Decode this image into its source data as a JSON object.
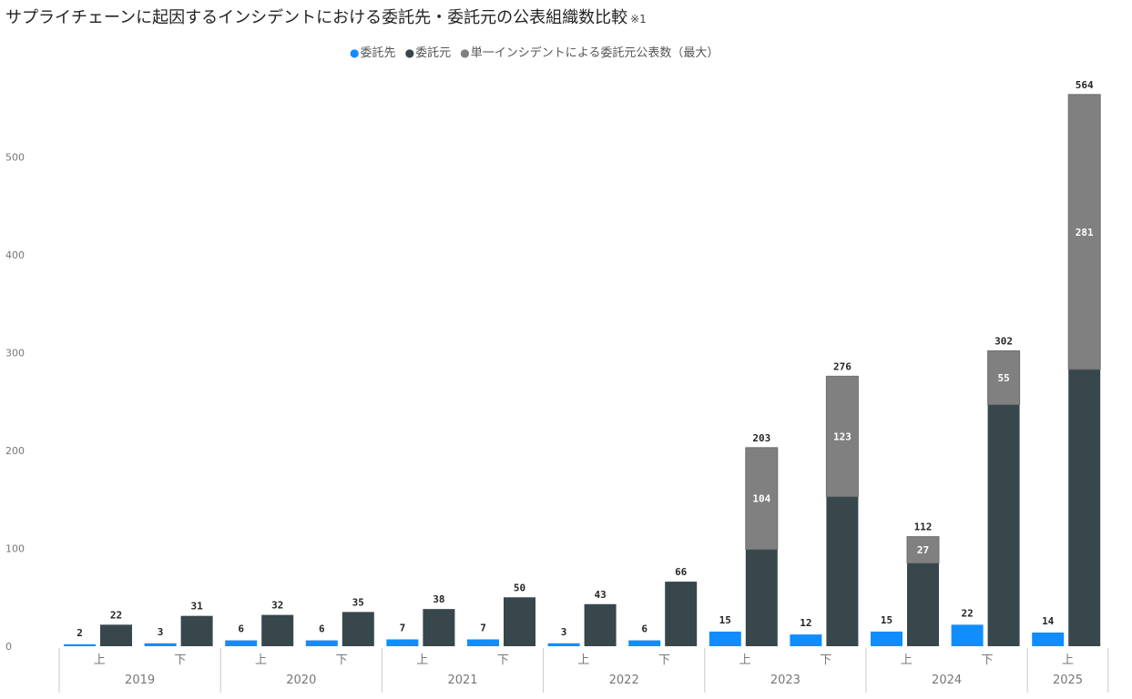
{
  "title": "サプライチェーンに起因するインシデントにおける委託先・委託元の公表組織数比較",
  "title_note": "※1",
  "legend": [
    {
      "label": "委託先",
      "color": "#118DFF"
    },
    {
      "label": "委託元",
      "color": "#37474B"
    },
    {
      "label": "単一インシデントによる委託元公表数（最大）",
      "color": "#808080"
    }
  ],
  "chart_data": {
    "type": "bar",
    "stacked_second_series": true,
    "ylim": [
      0,
      575
    ],
    "yticks": [
      0,
      100,
      200,
      300,
      400,
      500
    ],
    "grid": false,
    "legend_position": "top-center",
    "years": [
      "2019",
      "2020",
      "2021",
      "2022",
      "2023",
      "2024",
      "2025"
    ],
    "categories": [
      {
        "year": "2019",
        "half": "上"
      },
      {
        "year": "2019",
        "half": "下"
      },
      {
        "year": "2020",
        "half": "上"
      },
      {
        "year": "2020",
        "half": "下"
      },
      {
        "year": "2021",
        "half": "上"
      },
      {
        "year": "2021",
        "half": "下"
      },
      {
        "year": "2022",
        "half": "上"
      },
      {
        "year": "2022",
        "half": "下"
      },
      {
        "year": "2023",
        "half": "上"
      },
      {
        "year": "2023",
        "half": "下"
      },
      {
        "year": "2024",
        "half": "上"
      },
      {
        "year": "2024",
        "half": "下"
      },
      {
        "year": "2025",
        "half": "上"
      }
    ],
    "series": [
      {
        "name": "委託先",
        "color": "#118DFF",
        "values": [
          2,
          3,
          6,
          6,
          7,
          7,
          3,
          6,
          15,
          12,
          15,
          22,
          14
        ]
      },
      {
        "name": "委託元",
        "color": "#37474B",
        "values": [
          22,
          31,
          32,
          35,
          38,
          50,
          43,
          66,
          99,
          153,
          85,
          247,
          283
        ]
      },
      {
        "name": "単一インシデントによる委託元公表数（最大）",
        "color": "#808080",
        "values": [
          0,
          0,
          0,
          0,
          0,
          0,
          0,
          0,
          104,
          123,
          27,
          55,
          281
        ]
      }
    ],
    "totals_label": [
      22,
      31,
      32,
      35,
      38,
      50,
      43,
      66,
      203,
      276,
      112,
      302,
      564
    ],
    "inner_labels": [
      null,
      null,
      null,
      null,
      null,
      null,
      null,
      null,
      104,
      123,
      27,
      55,
      281
    ]
  }
}
